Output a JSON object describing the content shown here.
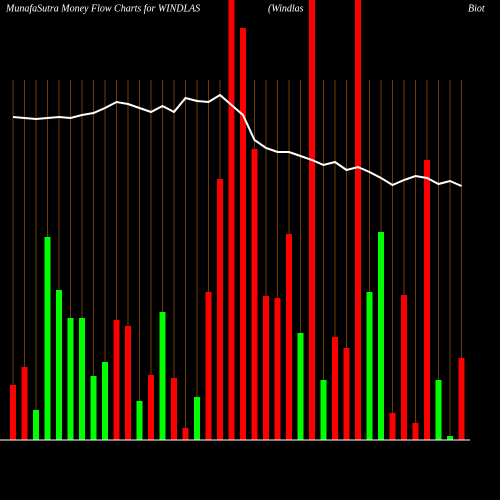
{
  "chart_data": {
    "type": "bar",
    "title": "MunafaSutra  Money Flow  Charts for WINDLAS",
    "subtitle": "(Windlas",
    "subtitle2": "Biot",
    "ylim": [
      0,
      440
    ],
    "grid": true,
    "grid_color": "#8a4a0a",
    "series": [
      {
        "name": "Money Flow",
        "type": "bar",
        "values": [
          55,
          73,
          30,
          203,
          150,
          122,
          122,
          64,
          78,
          120,
          114,
          39,
          65,
          128,
          62,
          12,
          43,
          148,
          261,
          460,
          412,
          291,
          144,
          142,
          206,
          107,
          460,
          60,
          103,
          92,
          460,
          148,
          208,
          27,
          145,
          17,
          280,
          60,
          4,
          82
        ],
        "colors": [
          "#ff0000",
          "#ff0000",
          "#00ff00",
          "#00ff00",
          "#00ff00",
          "#00ff00",
          "#00ff00",
          "#00ff00",
          "#00ff00",
          "#ff0000",
          "#ff0000",
          "#00ff00",
          "#ff0000",
          "#00ff00",
          "#ff0000",
          "#ff0000",
          "#00ff00",
          "#ff0000",
          "#ff0000",
          "#ff0000",
          "#ff0000",
          "#ff0000",
          "#ff0000",
          "#ff0000",
          "#ff0000",
          "#00ff00",
          "#ff0000",
          "#00ff00",
          "#ff0000",
          "#ff0000",
          "#ff0000",
          "#00ff00",
          "#00ff00",
          "#ff0000",
          "#ff0000",
          "#ff0000",
          "#ff0000",
          "#00ff00",
          "#00ff00",
          "#ff0000"
        ]
      },
      {
        "name": "Price",
        "type": "line",
        "color": "#ffffff",
        "values": [
          323,
          322,
          321,
          322,
          323,
          322,
          325,
          327,
          332,
          338,
          336,
          332,
          328,
          334,
          328,
          342,
          339,
          338,
          345,
          335,
          325,
          300,
          292,
          288,
          288,
          284,
          280,
          275,
          278,
          270,
          273,
          268,
          262,
          255,
          260,
          264,
          262,
          256,
          259,
          254
        ]
      }
    ]
  }
}
